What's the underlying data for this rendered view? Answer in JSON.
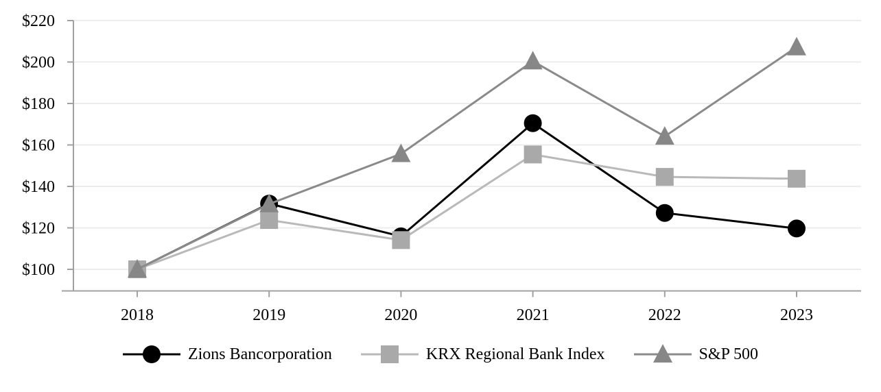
{
  "chart_data": {
    "type": "line",
    "title": "",
    "xlabel": "",
    "ylabel": "",
    "categories": [
      "2018",
      "2019",
      "2020",
      "2021",
      "2022",
      "2023"
    ],
    "series": [
      {
        "name": "Zions Bancorporation",
        "values": [
          100,
          131.7,
          115.9,
          170.5,
          127.2,
          119.7
        ],
        "marker": "circle",
        "marker_color": "#000000",
        "line_color": "#000000"
      },
      {
        "name": "KRX Regional Bank Index",
        "values": [
          100,
          123.8,
          114.1,
          155.4,
          144.6,
          143.7
        ],
        "marker": "square",
        "marker_color": "#a9a9a9",
        "line_color": "#b9b9b9"
      },
      {
        "name": "S&P 500",
        "values": [
          100,
          131.5,
          155.7,
          200.4,
          164.1,
          207.2
        ],
        "marker": "triangle",
        "marker_color": "#878787",
        "line_color": "#8a8a8a"
      }
    ],
    "y_ticks": [
      {
        "label": "$220",
        "value": 220
      },
      {
        "label": "$200",
        "value": 200
      },
      {
        "label": "$180",
        "value": 180
      },
      {
        "label": "$160",
        "value": 160
      },
      {
        "label": "$140",
        "value": 140
      },
      {
        "label": "$120",
        "value": 120
      },
      {
        "label": "$100",
        "value": 100
      }
    ],
    "ylim": [
      89.5,
      220
    ],
    "grid": "horizontal",
    "legend_position": "bottom",
    "colors": {
      "axis": "#a0a0a0",
      "grid": "#ececec",
      "label": "#000000",
      "background": "#ffffff"
    }
  }
}
